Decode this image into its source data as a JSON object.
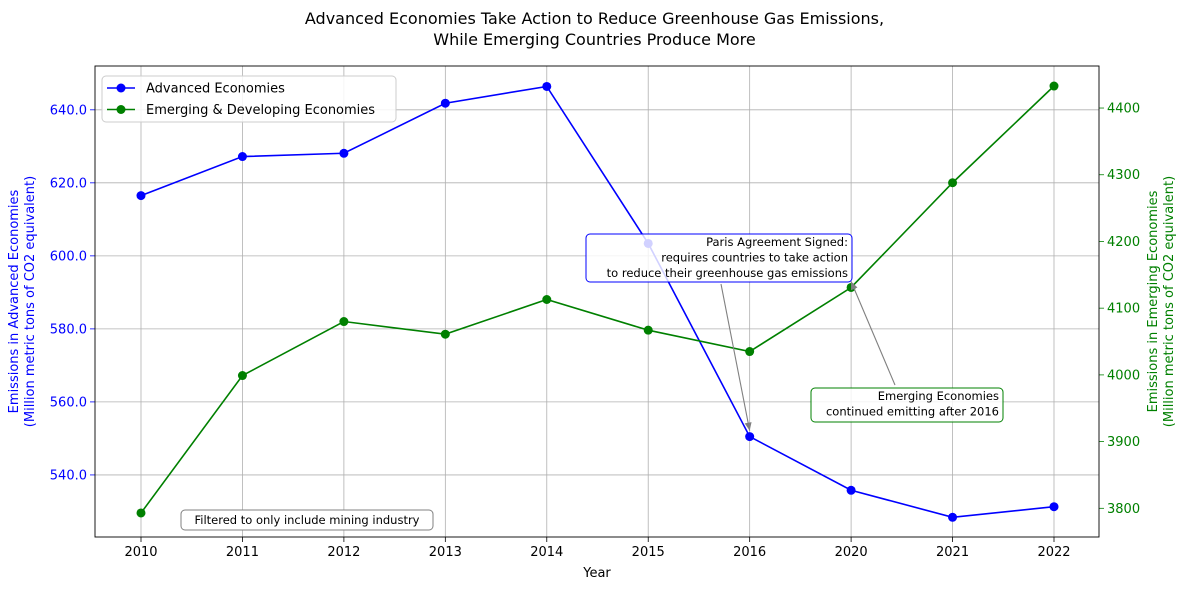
{
  "chart_data": {
    "type": "line",
    "title_line1": "Advanced Economies Take Action to Reduce Greenhouse Gas Emissions,",
    "title_line2": "While Emerging Countries Produce More",
    "xlabel": "Year",
    "ylabel_left_line1": "Emissions in Advanced Economies",
    "ylabel_left_line2": "(Million metric tons of CO2 equivalent)",
    "ylabel_right_line1": "Emissions in Emerging Economies",
    "ylabel_right_line2": "(Million metric tons of CO2 equivalent)",
    "categories": [
      "2010",
      "2011",
      "2012",
      "2013",
      "2014",
      "2015",
      "2016",
      "2020",
      "2021",
      "2022"
    ],
    "ylim_left": [
      523,
      652
    ],
    "ylim_right": [
      3757,
      4463
    ],
    "yticks_left": [
      "540.0",
      "560.0",
      "580.0",
      "600.0",
      "620.0",
      "640.0"
    ],
    "yticks_right": [
      "3800",
      "3900",
      "4000",
      "4100",
      "4200",
      "4300",
      "4400"
    ],
    "grid": true,
    "legend_position": "upper-left",
    "series": [
      {
        "name": "Advanced Economies",
        "axis": "left",
        "color": "#0000ff",
        "values": [
          616.5,
          627.2,
          628.1,
          641.8,
          646.4,
          603.4,
          550.5,
          535.8,
          528.4,
          531.3
        ]
      },
      {
        "name": "Emerging & Developing Economies",
        "axis": "right",
        "color": "#008000",
        "values": [
          3793,
          3999,
          4080,
          4061,
          4113,
          4067,
          4035,
          4131,
          4288,
          4433
        ]
      }
    ],
    "annotations": [
      {
        "lines": [
          "Paris Agreement Signed:",
          "requires countries to take action",
          "to reduce their greenhouse gas emissions"
        ],
        "target_category": "2016",
        "target_series": 0,
        "border_color": "#0000ff"
      },
      {
        "lines": [
          "Emerging Economies",
          "continued emitting after 2016"
        ],
        "target_category": "2020",
        "target_series": 1,
        "border_color": "#008000"
      }
    ],
    "footnote": "Filtered to only include mining industry"
  }
}
